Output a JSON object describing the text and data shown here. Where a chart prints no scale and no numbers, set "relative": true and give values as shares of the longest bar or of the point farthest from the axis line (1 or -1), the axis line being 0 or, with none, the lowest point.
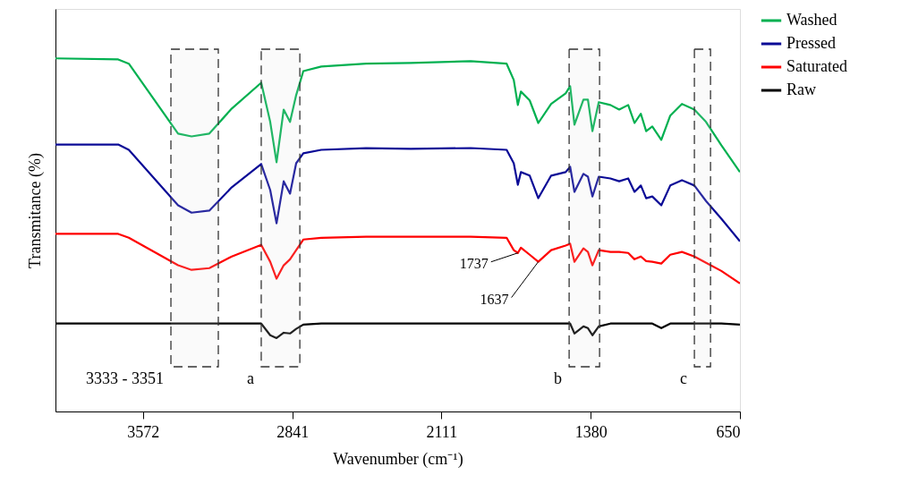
{
  "chart_data": {
    "type": "line",
    "relative": true,
    "xlabel": "Wavenumber (cm⁻¹)",
    "ylabel": "Transmitance (%)",
    "xlim": [
      4000,
      650
    ],
    "xticks": [
      3572,
      2841,
      2111,
      1380,
      650
    ],
    "grid": false,
    "legend": "right",
    "marker": "none",
    "line_style": "solid",
    "x": [
      4000,
      3693,
      3641,
      3400,
      3334,
      3247,
      3137,
      2993,
      2949,
      2918,
      2883,
      2852,
      2822,
      2787,
      2699,
      2480,
      2261,
      1968,
      1792,
      1757,
      1737,
      1722,
      1679,
      1637,
      1574,
      1503,
      1481,
      1460,
      1416,
      1394,
      1372,
      1341,
      1284,
      1241,
      1197,
      1166,
      1135,
      1109,
      1079,
      1035,
      991,
      934,
      873,
      816,
      741,
      650
    ],
    "series": [
      {
        "name": "Washed",
        "color": "#00b050",
        "values": [
          1.0,
          0.997,
          0.985,
          0.787,
          0.779,
          0.787,
          0.858,
          0.931,
          0.82,
          0.706,
          0.855,
          0.82,
          0.896,
          0.964,
          0.977,
          0.985,
          0.987,
          0.992,
          0.985,
          0.939,
          0.868,
          0.906,
          0.881,
          0.817,
          0.871,
          0.901,
          0.921,
          0.812,
          0.883,
          0.883,
          0.794,
          0.876,
          0.868,
          0.855,
          0.868,
          0.817,
          0.843,
          0.794,
          0.807,
          0.769,
          0.838,
          0.871,
          0.855,
          0.82,
          0.754,
          0.678
        ]
      },
      {
        "name": "Pressed",
        "color": "#0a0a96",
        "values": [
          0.756,
          0.756,
          0.741,
          0.584,
          0.563,
          0.569,
          0.635,
          0.701,
          0.627,
          0.533,
          0.652,
          0.617,
          0.703,
          0.731,
          0.741,
          0.746,
          0.744,
          0.746,
          0.741,
          0.703,
          0.642,
          0.678,
          0.668,
          0.604,
          0.668,
          0.678,
          0.693,
          0.622,
          0.673,
          0.665,
          0.609,
          0.665,
          0.66,
          0.652,
          0.66,
          0.622,
          0.64,
          0.604,
          0.609,
          0.584,
          0.64,
          0.655,
          0.64,
          0.596,
          0.546,
          0.482
        ]
      },
      {
        "name": "Saturated",
        "color": "#ff0000",
        "values": [
          0.503,
          0.503,
          0.492,
          0.414,
          0.401,
          0.406,
          0.439,
          0.472,
          0.424,
          0.376,
          0.414,
          0.431,
          0.457,
          0.487,
          0.492,
          0.495,
          0.495,
          0.495,
          0.492,
          0.457,
          0.449,
          0.464,
          0.444,
          0.424,
          0.457,
          0.47,
          0.475,
          0.424,
          0.462,
          0.452,
          0.414,
          0.457,
          0.452,
          0.452,
          0.449,
          0.431,
          0.439,
          0.426,
          0.424,
          0.419,
          0.444,
          0.452,
          0.439,
          0.421,
          0.398,
          0.363
        ]
      },
      {
        "name": "Raw",
        "color": "#000000",
        "values": [
          0.249,
          0.249,
          0.249,
          0.249,
          0.249,
          0.249,
          0.249,
          0.249,
          0.216,
          0.208,
          0.223,
          0.221,
          0.234,
          0.246,
          0.249,
          0.249,
          0.249,
          0.249,
          0.249,
          0.249,
          0.249,
          0.249,
          0.249,
          0.249,
          0.249,
          0.249,
          0.249,
          0.221,
          0.241,
          0.236,
          0.216,
          0.241,
          0.249,
          0.249,
          0.249,
          0.249,
          0.249,
          0.249,
          0.249,
          0.236,
          0.249,
          0.249,
          0.249,
          0.249,
          0.249,
          0.246
        ]
      }
    ],
    "bands": [
      {
        "axis": "x",
        "from": 3435,
        "to": 3203,
        "label": "3333 - 3351"
      },
      {
        "axis": "x",
        "from": 2993,
        "to": 2804,
        "label": "a"
      },
      {
        "axis": "x",
        "from": 1486,
        "to": 1337,
        "label": "b"
      },
      {
        "axis": "x",
        "from": 873,
        "to": 794,
        "label": "c"
      }
    ],
    "annotations": [
      {
        "text": "1737",
        "x": 1737,
        "y": 0.449
      },
      {
        "text": "1637",
        "x": 1637,
        "y": 0.424
      }
    ]
  }
}
